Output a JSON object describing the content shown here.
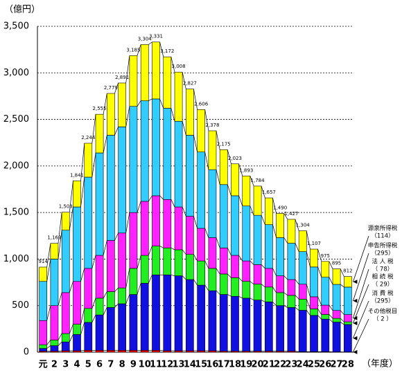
{
  "chart_data": {
    "type": "stacked-bar",
    "y_unit_label": "（億円）",
    "x_unit_label": "（年度）",
    "categories": [
      "元",
      "2",
      "3",
      "4",
      "5",
      "6",
      "7",
      "8",
      "9",
      "10",
      "11",
      "12",
      "13",
      "14",
      "15",
      "16",
      "17",
      "18",
      "19",
      "20",
      "21",
      "22",
      "23",
      "24",
      "25",
      "26",
      "27",
      "28"
    ],
    "ylim": [
      0,
      3500
    ],
    "yticks": [
      0,
      500,
      {
        "value": 1000,
        "label": "1,000"
      },
      {
        "value": 1500,
        "label": "1,500"
      },
      {
        "value": 2000,
        "label": "2,000"
      },
      {
        "value": 2500,
        "label": "2,500"
      },
      {
        "value": 3000,
        "label": "3,000"
      },
      {
        "value": 3500,
        "label": "3,500"
      }
    ],
    "grid": true,
    "series": [
      {
        "name": "その他税目",
        "legend_value_label": "（ 2 ）",
        "color": "#ff0000",
        "values": [
          10,
          10,
          15,
          15,
          20,
          20,
          20,
          20,
          20,
          20,
          20,
          15,
          15,
          15,
          15,
          15,
          10,
          10,
          10,
          10,
          10,
          10,
          10,
          5,
          5,
          5,
          3,
          2
        ]
      },
      {
        "name": "消 費 税",
        "legend_value_label": "（295）",
        "color": "#1010e0",
        "values": [
          30,
          60,
          95,
          175,
          300,
          380,
          460,
          500,
          600,
          720,
          810,
          815,
          805,
          765,
          705,
          645,
          610,
          590,
          570,
          550,
          530,
          490,
          470,
          445,
          390,
          350,
          320,
          295
        ]
      },
      {
        "name": "相 続 税",
        "legend_value_label": "（ 29）",
        "color": "#22ee22",
        "values": [
          40,
          60,
          90,
          110,
          150,
          180,
          170,
          170,
          280,
          300,
          310,
          290,
          280,
          270,
          260,
          240,
          220,
          200,
          180,
          170,
          160,
          140,
          130,
          120,
          70,
          50,
          40,
          29
        ]
      },
      {
        "name": "法 人 税",
        "legend_value_label": "（ 78）",
        "color": "#ff22ff",
        "values": [
          260,
          370,
          440,
          460,
          430,
          460,
          550,
          590,
          600,
          580,
          540,
          520,
          460,
          410,
          350,
          330,
          280,
          240,
          220,
          210,
          200,
          180,
          170,
          160,
          130,
          100,
          85,
          78
        ]
      },
      {
        "name": "申告所得税",
        "legend_value_label": "（295）",
        "color": "#33ccff",
        "values": [
          420,
          500,
          670,
          800,
          980,
          1100,
          1130,
          1140,
          1140,
          1080,
          1040,
          980,
          920,
          870,
          820,
          730,
          680,
          640,
          590,
          530,
          470,
          410,
          390,
          350,
          320,
          300,
          280,
          295
        ]
      },
      {
        "name": "源泉所得税",
        "legend_value_label": "（114）",
        "color": "#ffff00",
        "values": [
          154,
          169,
          193,
          281,
          364,
          415,
          449,
          471,
          545,
          604,
          611,
          552,
          528,
          497,
          456,
          418,
          375,
          343,
          323,
          314,
          287,
          260,
          257,
          224,
          192,
          170,
          167,
          114
        ]
      }
    ],
    "totals": [
      914,
      1169,
      1503,
      1841,
      2244,
      2555,
      2779,
      2891,
      3185,
      3304,
      3331,
      3172,
      3008,
      2827,
      2606,
      2378,
      2175,
      2023,
      1893,
      1784,
      1657,
      1490,
      1427,
      1304,
      1107,
      975,
      895,
      812
    ],
    "total_labels": [
      "914",
      "1,169",
      "1,503",
      "1,841",
      "2,244",
      "2,555",
      "2,779",
      "2,891",
      "3,185",
      "3,304",
      "3,331",
      "3,172",
      "3,008",
      "2,827",
      "2,606",
      "2,378",
      "2,175",
      "2,023",
      "1,893",
      "1,784",
      "1,657",
      "1,490",
      "1,427",
      "1,304",
      "1,107",
      "975",
      "895",
      "812"
    ]
  }
}
